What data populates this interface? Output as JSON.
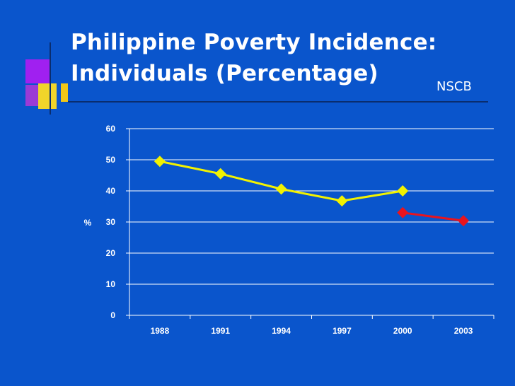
{
  "title": {
    "line1": "Philippine Poverty Incidence:",
    "line2": "Individuals (Percentage)"
  },
  "source": "NSCB",
  "colors": {
    "background": "#0a55cc",
    "series_yellow": "#f2f200",
    "series_red": "#e8141e",
    "axis_text": "#ffffff",
    "gridline": "#ffffff"
  },
  "chart_data": {
    "type": "line",
    "title": "",
    "xlabel": "",
    "ylabel": "%",
    "categories": [
      "1988",
      "1991",
      "1994",
      "1997",
      "2000",
      "2003"
    ],
    "ylim": [
      0,
      60
    ],
    "yticks": [
      0,
      10,
      20,
      30,
      40,
      50,
      60
    ],
    "grid": true,
    "legend": "none",
    "series": [
      {
        "color": "#f2f200",
        "values": [
          49.5,
          45.5,
          40.6,
          36.8,
          40.0,
          null
        ]
      },
      {
        "color": "#e8141e",
        "values": [
          null,
          null,
          null,
          null,
          33.0,
          30.4
        ]
      }
    ]
  }
}
